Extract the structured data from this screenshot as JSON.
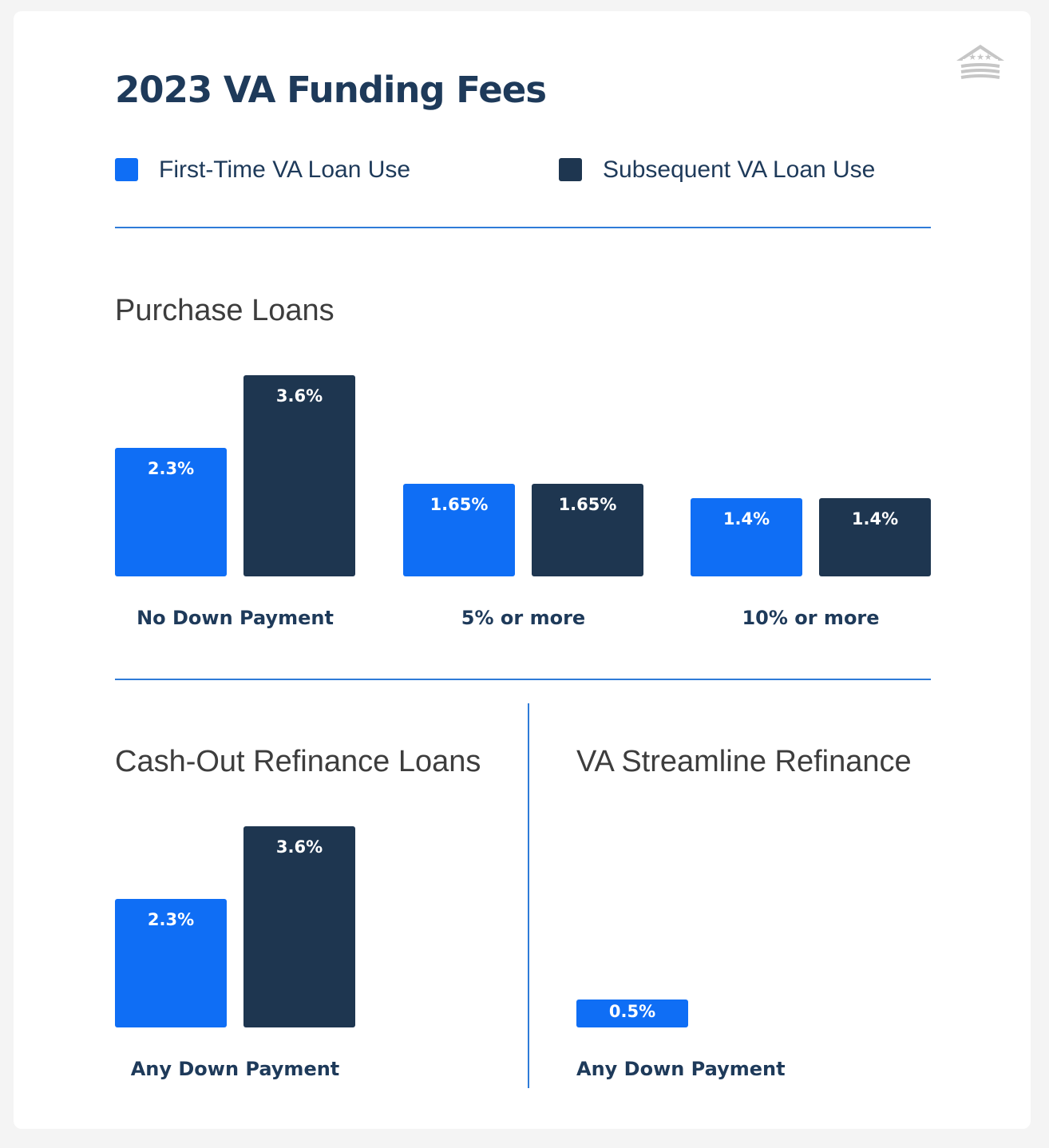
{
  "title": "2023 VA Funding Fees",
  "legend": [
    {
      "label": "First-Time VA Loan Use",
      "color": "#0f6ef5"
    },
    {
      "label": "Subsequent VA Loan Use",
      "color": "#1e3650"
    }
  ],
  "logo_icon": "house-stars-logo-icon",
  "chart_data": [
    {
      "type": "bar",
      "title": "Purchase Loans",
      "categories": [
        "No Down Payment",
        "5% or more",
        "10% or more"
      ],
      "series": [
        {
          "name": "First-Time VA Loan Use",
          "values": [
            2.3,
            1.65,
            1.4
          ],
          "labels": [
            "2.3%",
            "1.65%",
            "1.4%"
          ]
        },
        {
          "name": "Subsequent VA Loan Use",
          "values": [
            3.6,
            1.65,
            1.4
          ],
          "labels": [
            "3.6%",
            "1.65%",
            "1.4%"
          ]
        }
      ],
      "unit": "%"
    },
    {
      "type": "bar",
      "title": "Cash-Out Refinance Loans",
      "categories": [
        "Any Down Payment"
      ],
      "series": [
        {
          "name": "First-Time VA Loan Use",
          "values": [
            2.3
          ],
          "labels": [
            "2.3%"
          ]
        },
        {
          "name": "Subsequent VA Loan Use",
          "values": [
            3.6
          ],
          "labels": [
            "3.6%"
          ]
        }
      ],
      "unit": "%"
    },
    {
      "type": "bar",
      "title": "VA Streamline Refinance",
      "categories": [
        "Any Down Payment"
      ],
      "series": [
        {
          "name": "First-Time VA Loan Use",
          "values": [
            0.5
          ],
          "labels": [
            "0.5%"
          ]
        }
      ],
      "unit": "%"
    }
  ]
}
